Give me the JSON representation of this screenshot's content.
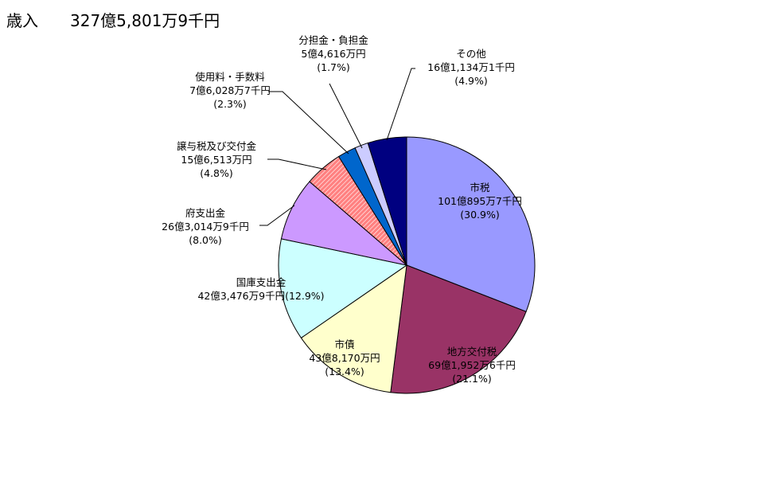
{
  "chart_data": {
    "type": "pie",
    "title": "歳入　　327億5,801万9千円",
    "start_angle_deg": 0,
    "direction": "clockwise",
    "slices": [
      {
        "name": "市税",
        "amount": "101億895万7千円",
        "pct": 30.9,
        "pct_label": "(30.9%)",
        "color": "#9999FF"
      },
      {
        "name": "地方交付税",
        "amount": "69億1,952万6千円",
        "pct": 21.1,
        "pct_label": "(21.1%)",
        "color": "#993366"
      },
      {
        "name": "市債",
        "amount": "43億8,170万円",
        "pct": 13.4,
        "pct_label": "(13.4%)",
        "color": "#FFFFCC"
      },
      {
        "name": "国庫支出金",
        "amount": "42億3,476万9千円",
        "pct": 12.9,
        "pct_label": "(12.9%)",
        "color": "#CCFFFF"
      },
      {
        "name": "府支出金",
        "amount": "26億3,014万9千円",
        "pct": 8.0,
        "pct_label": "(8.0%)",
        "color": "#CC99FF"
      },
      {
        "name": "譲与税及び交付金",
        "amount": "15億6,513万円",
        "pct": 4.8,
        "pct_label": "(4.8%)",
        "color": "#FF8080"
      },
      {
        "name": "使用料・手数料",
        "amount": "7億6,028万7千円",
        "pct": 2.3,
        "pct_label": "(2.3%)",
        "color": "#0066CC"
      },
      {
        "name": "分担金・負担金",
        "amount": "5億4,616万円",
        "pct": 1.7,
        "pct_label": "(1.7%)",
        "color": "#CCCCFF"
      },
      {
        "name": "その他",
        "amount": "16億1,134万1千円",
        "pct": 4.9,
        "pct_label": "(4.9%)",
        "color": "#000080"
      }
    ]
  }
}
